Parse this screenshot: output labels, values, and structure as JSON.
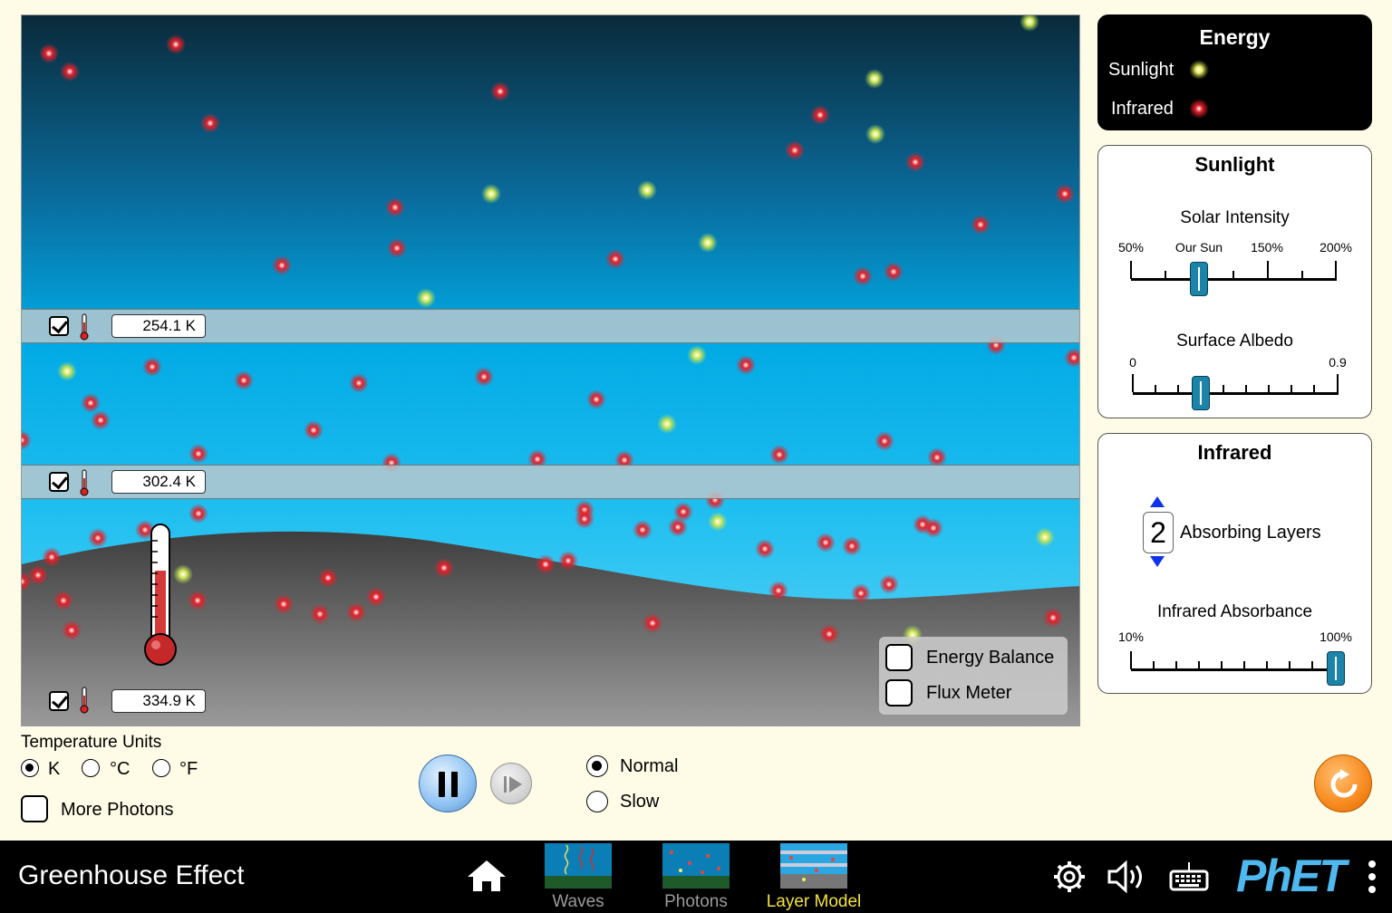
{
  "energy_legend": {
    "title": "Energy",
    "sunlight_label": "Sunlight",
    "infrared_label": "Infrared"
  },
  "sunlight_panel": {
    "title": "Sunlight",
    "solar_intensity": {
      "label": "Solar Intensity",
      "ticks": [
        "50%",
        "Our Sun",
        "150%",
        "200%"
      ],
      "value_percent": 100
    },
    "surface_albedo": {
      "label": "Surface Albedo",
      "min_label": "0",
      "max_label": "0.9",
      "value": 0.3
    }
  },
  "infrared_panel": {
    "title": "Infrared",
    "absorbing_layers": {
      "value": "2",
      "label": "Absorbing Layers"
    },
    "infrared_absorbance": {
      "label": "Infrared Absorbance",
      "min_label": "10%",
      "max_label": "100%",
      "value_percent": 100
    }
  },
  "scene": {
    "layer_temps": [
      "254.1 K",
      "302.4 K"
    ],
    "surface_temp": "334.9 K",
    "energy_balance_label": "Energy Balance",
    "flux_meter_label": "Flux Meter",
    "colors": {
      "sunlight_photon": "#e8f060",
      "infrared_photon": "#e2202a",
      "ground": "#5a5a5a",
      "sky_top": "#0a3448",
      "sky_bottom": "#5ad2f5"
    }
  },
  "temperature_units": {
    "label": "Temperature Units",
    "options": [
      "K",
      "°C",
      "°F"
    ],
    "selected": "K"
  },
  "more_photons_label": "More Photons",
  "speed": {
    "options": [
      "Normal",
      "Slow"
    ],
    "selected": "Normal"
  },
  "navbar": {
    "title": "Greenhouse Effect",
    "screens": [
      "Waves",
      "Photons",
      "Layer Model"
    ],
    "selected_screen": "Layer Model",
    "logo_text": "PhET"
  }
}
